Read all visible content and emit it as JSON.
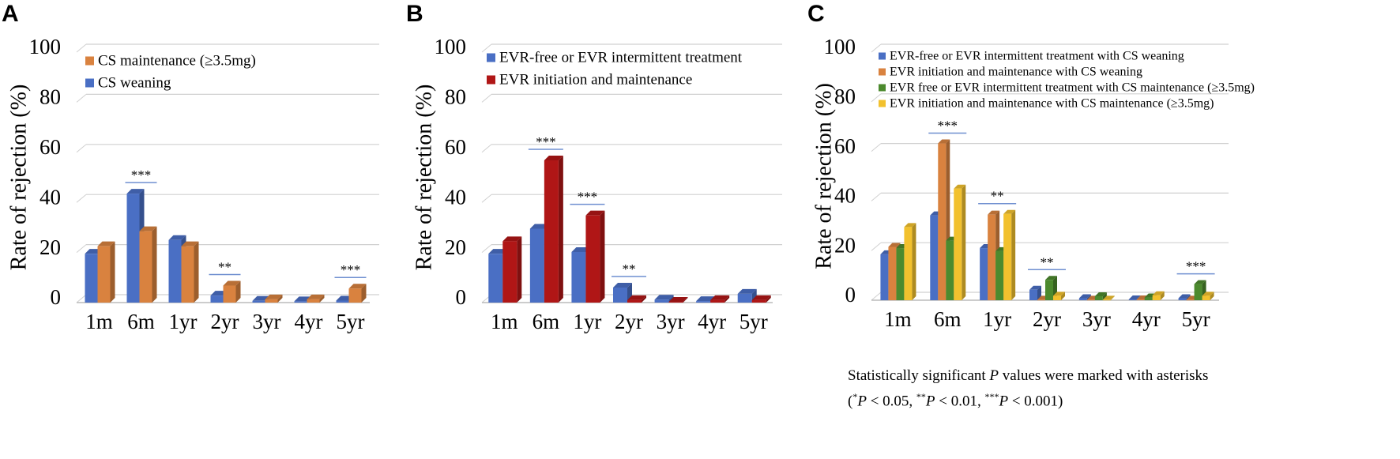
{
  "colors": {
    "blue": "#4a6fc4",
    "orange": "#d9823f",
    "red": "#b01616",
    "green": "#4c8a2e",
    "yellow": "#f2c12e",
    "grid": "#d0d0d0",
    "sig_line": "#6f8fd0"
  },
  "footnote": {
    "line1_prefix": "Statistically significant ",
    "line1_p": "P",
    "line1_suffix": " values were marked with asterisks",
    "line2_open": "(",
    "star1": "*",
    "p_a": "P",
    "lt_a": " < 0.05, ",
    "star2": "**",
    "p_b": "P",
    "lt_b": " < 0.01, ",
    "star3": "***",
    "p_c": "P",
    "lt_c": " < 0.001)"
  },
  "chart_data": [
    {
      "panel": "A",
      "type": "bar",
      "ylabel": "Rate of rejection (%)",
      "ylim": [
        0,
        100
      ],
      "yticks": [
        0,
        20,
        40,
        60,
        80,
        100
      ],
      "grid": true,
      "categories": [
        "1m",
        "6m",
        "1yr",
        "2yr",
        "3yr",
        "4yr",
        "5yr"
      ],
      "series": [
        {
          "name": "CS weaning",
          "color": "#4a6fc4",
          "values": [
            19.5,
            43.5,
            25,
            2.8,
            0.7,
            0.5,
            0.8
          ]
        },
        {
          "name": "CS maintenance (≥3.5mg)",
          "color": "#d9823f",
          "values": [
            22.5,
            28.5,
            22.5,
            6.8,
            1.3,
            1.3,
            5.6
          ]
        }
      ],
      "legend": {
        "position": "top-left",
        "entries": [
          {
            "label": "CS maintenance (≥3.5mg)",
            "color": "#d9823f"
          },
          {
            "label": "CS weaning",
            "color": "#4a6fc4"
          }
        ]
      },
      "significance": [
        {
          "category": "6m",
          "label": "***"
        },
        {
          "category": "2yr",
          "label": "**"
        },
        {
          "category": "5yr",
          "label": "***"
        }
      ]
    },
    {
      "panel": "B",
      "type": "bar",
      "ylabel": "Rate of rejection (%)",
      "ylim": [
        0,
        100
      ],
      "yticks": [
        0,
        20,
        40,
        60,
        80,
        100
      ],
      "grid": true,
      "categories": [
        "1m",
        "6m",
        "1yr",
        "2yr",
        "3yr",
        "4yr",
        "5yr"
      ],
      "series": [
        {
          "name": "EVR-free or EVR intermittent treatment",
          "color": "#4a6fc4",
          "values": [
            19.5,
            29.5,
            20.2,
            6,
            1.2,
            0.6,
            3.5
          ]
        },
        {
          "name": "EVR initiation and maintenance",
          "color": "#b01616",
          "values": [
            24.5,
            56.8,
            34.8,
            1,
            0.3,
            1,
            1
          ]
        }
      ],
      "legend": {
        "position": "top-left",
        "entries": [
          {
            "label": "EVR-free or EVR intermittent treatment",
            "color": "#4a6fc4"
          },
          {
            "label": "EVR initiation and maintenance",
            "color": "#b01616"
          }
        ]
      },
      "significance": [
        {
          "category": "6m",
          "label": "***"
        },
        {
          "category": "1yr",
          "label": "***"
        },
        {
          "category": "2yr",
          "label": "**"
        }
      ]
    },
    {
      "panel": "C",
      "type": "bar",
      "ylabel": "Rate of rejection (%)",
      "ylim": [
        0,
        100
      ],
      "yticks": [
        0,
        20,
        40,
        60,
        80,
        100
      ],
      "grid": true,
      "categories": [
        "1m",
        "6m",
        "1yr",
        "2yr",
        "3yr",
        "4yr",
        "5yr"
      ],
      "series": [
        {
          "name": "EVR-free  or EVR intermittent treatment with CS  weaning",
          "color": "#4a6fc4",
          "values": [
            18.5,
            34.2,
            21,
            4.2,
            0.8,
            0.3,
            0.8
          ]
        },
        {
          "name": "EVR initiation and maintenance with CS  weaning",
          "color": "#d9823f",
          "values": [
            21.5,
            63.2,
            34.5,
            0.2,
            0.2,
            0.3,
            0.2
          ]
        },
        {
          "name": "EVR free  or EVR intermittent treatment with CS maintenance (≥3.5mg)",
          "color": "#4c8a2e",
          "values": [
            21,
            24,
            19.8,
            8.2,
            1.6,
            1.1,
            6.5
          ]
        },
        {
          "name": "EVR initiation and maintenance with CS maintenance (≥3.5mg)",
          "color": "#f2c12e",
          "values": [
            29.5,
            45,
            34.8,
            1.8,
            0.2,
            2,
            1.8
          ]
        }
      ],
      "legend": {
        "position": "top-left",
        "entries": [
          {
            "label": "EVR-free  or EVR intermittent treatment with CS  weaning",
            "color": "#4a6fc4"
          },
          {
            "label": "EVR initiation and maintenance with CS  weaning",
            "color": "#d9823f"
          },
          {
            "label": "EVR free  or EVR intermittent treatment with CS maintenance (≥3.5mg)",
            "color": "#4c8a2e"
          },
          {
            "label": "EVR initiation and maintenance with CS maintenance (≥3.5mg)",
            "color": "#f2c12e"
          }
        ]
      },
      "significance": [
        {
          "category": "6m",
          "label": "***"
        },
        {
          "category": "1yr",
          "label": "**"
        },
        {
          "category": "2yr",
          "label": "**"
        },
        {
          "category": "5yr",
          "label": "***"
        }
      ]
    }
  ]
}
